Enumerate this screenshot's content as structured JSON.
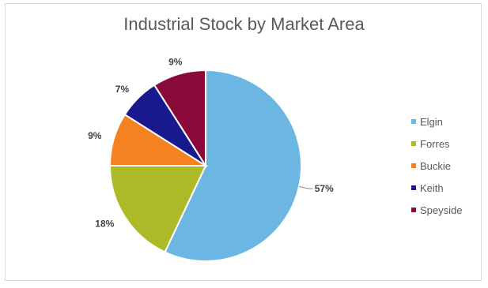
{
  "chart_data": {
    "type": "pie",
    "title": "Industrial Stock by Market Area",
    "categories": [
      "Elgin",
      "Forres",
      "Buckie",
      "Keith",
      "Speyside"
    ],
    "values": [
      57,
      18,
      9,
      7,
      9
    ],
    "labels": [
      "57%",
      "18%",
      "9%",
      "7%",
      "9%"
    ],
    "colors": [
      "#6cb6e3",
      "#adb927",
      "#f58220",
      "#1a1a8f",
      "#8b0a3c"
    ],
    "legend_position": "right",
    "start_angle": "12 o'clock",
    "direction": "clockwise"
  }
}
